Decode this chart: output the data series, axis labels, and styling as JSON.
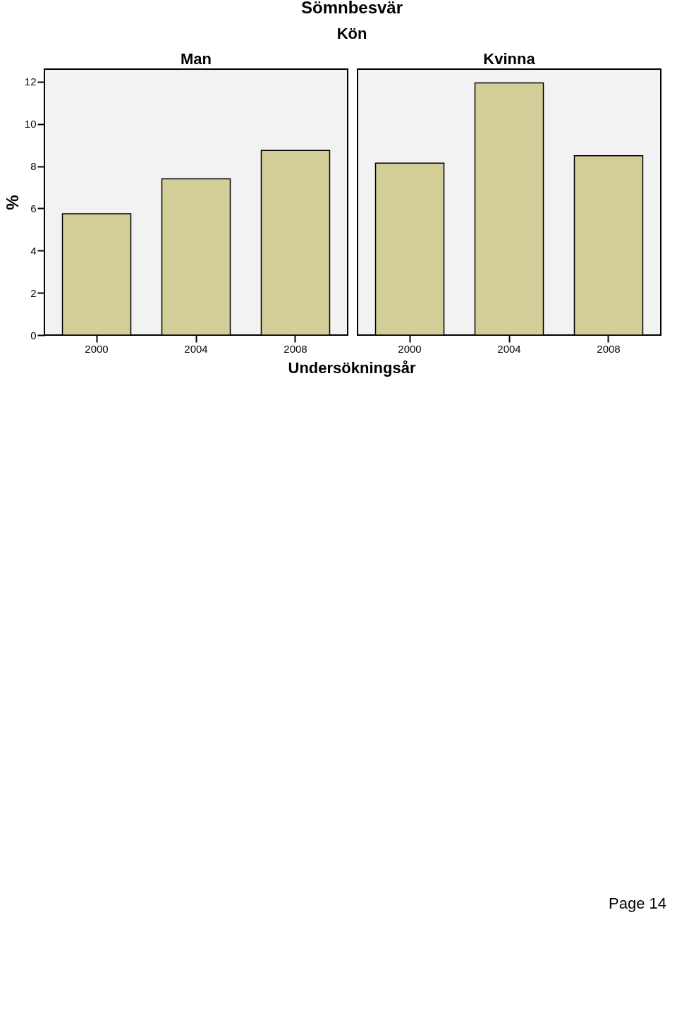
{
  "chart_data": [
    {
      "type": "bar",
      "title": "Man",
      "ylabel": "%",
      "xlabel": "Undersökningsår",
      "categories": [
        "2000",
        "2004",
        "2008"
      ],
      "values": [
        5.75,
        7.4,
        8.75
      ],
      "color": "#d3cd98",
      "ylim": [
        0,
        12.6
      ],
      "yticks": [
        0,
        2,
        4,
        6,
        8,
        10,
        12
      ],
      "annotations": [
        "Sömnbesvär",
        "Kön",
        "Page 14"
      ]
    },
    {
      "type": "bar",
      "title": "Kvinna",
      "categories": [
        "2000",
        "2004",
        "2008"
      ],
      "values": [
        8.15,
        11.95,
        8.5
      ],
      "color": "#d3cd98",
      "ylim": [
        0,
        12.6
      ],
      "yticks": [
        0,
        2,
        4,
        6,
        8,
        10,
        12
      ],
      "tick_labels": "x"
    }
  ]
}
